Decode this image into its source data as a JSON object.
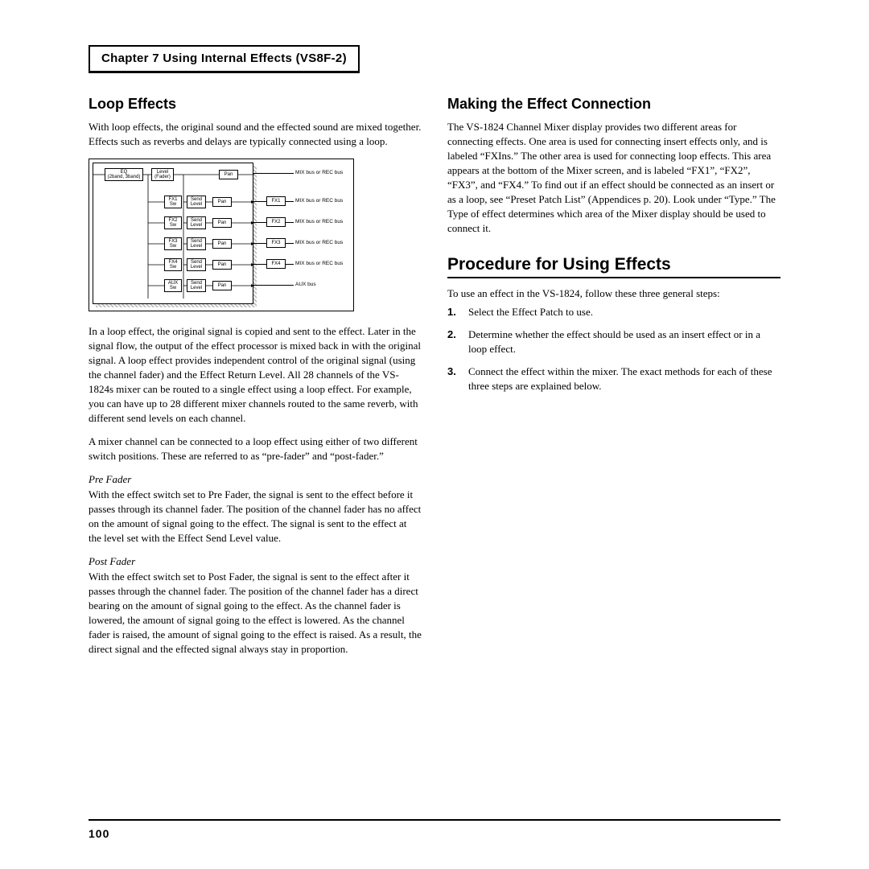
{
  "chapter_title": "Chapter 7 Using Internal Effects (VS8F-2)",
  "page_number": "100",
  "left": {
    "heading": "Loop Effects",
    "p1": "With loop effects, the original sound and the effected sound are mixed together. Effects such as reverbs and delays are typically connected using a loop.",
    "p2": "In a loop effect, the original signal is copied and sent to the effect. Later in the signal flow, the output of the effect processor is mixed back in with the original signal. A loop effect provides independent control of the original signal (using the channel fader) and the Effect Return Level. All 28 channels of the VS-1824s mixer can be routed to a single effect using a loop effect. For example, you can have up to 28 different mixer channels routed to the same reverb, with different send levels on each channel.",
    "p3": "A mixer channel can be connected to a loop effect using either of two different switch positions. These are referred to as “pre-fader” and “post-fader.”",
    "pre_label": "Pre Fader",
    "pre_body": "With the effect switch set to Pre Fader, the signal is sent to the effect before it passes through its channel fader. The position of the channel fader has no affect on the amount of signal going to the effect. The signal is sent to the effect at the level set with the Effect Send Level value.",
    "post_label": "Post Fader",
    "post_body": "With the effect switch set to Post Fader, the signal is sent to the effect after it passes through the channel fader. The position of the channel fader has a direct bearing on the amount of signal going to the effect. As the channel fader is lowered, the amount of signal going to the effect is lowered. As the channel fader is raised, the amount of signal going to the effect is raised. As a result, the direct signal and the effected signal always stay in proportion."
  },
  "right": {
    "heading": "Making the Effect Connection",
    "p1": "The VS-1824 Channel Mixer display provides two different areas for connecting effects. One area is used for connecting insert effects only, and is labeled “FXIns.” The other area is used for connecting loop effects. This area appears at the bottom of the Mixer screen, and is labeled “FX1”, “FX2”, “FX3”, and “FX4.” To find out if an effect should be connected as an insert or as a loop, see “Preset Patch List” (Appendices p. 20). Look under “Type.” The Type of effect determines which area of the Mixer display should be used to connect it.",
    "section": "Procedure for Using Effects",
    "p2": "To use an effect in the VS-1824, follow these three general steps:",
    "steps": [
      "Select the Effect Patch to use.",
      "Determine whether the effect should be used as an insert effect or in a loop effect.",
      "Connect the effect within the mixer. The exact methods for each of these three steps are explained below."
    ]
  },
  "diagram": {
    "eq_label": "EQ\n(2band, 3band)",
    "level_label": "Level\n(Fader)",
    "pan": "Pan",
    "send": "Send\nLevel",
    "rows": [
      {
        "sw": "FX1\nSw",
        "fx": "FX1",
        "bus": "MIX bus or REC bus"
      },
      {
        "sw": "FX2\nSw",
        "fx": "FX2",
        "bus": "MIX bus or REC bus"
      },
      {
        "sw": "FX3\nSw",
        "fx": "FX3",
        "bus": "MIX bus or REC bus"
      },
      {
        "sw": "FX4\nSw",
        "fx": "FX4",
        "bus": "MIX bus or REC bus"
      }
    ],
    "aux_sw": "AUX\nSw",
    "aux_bus": "AUX bus",
    "top_bus": "MIX bus or REC bus"
  }
}
